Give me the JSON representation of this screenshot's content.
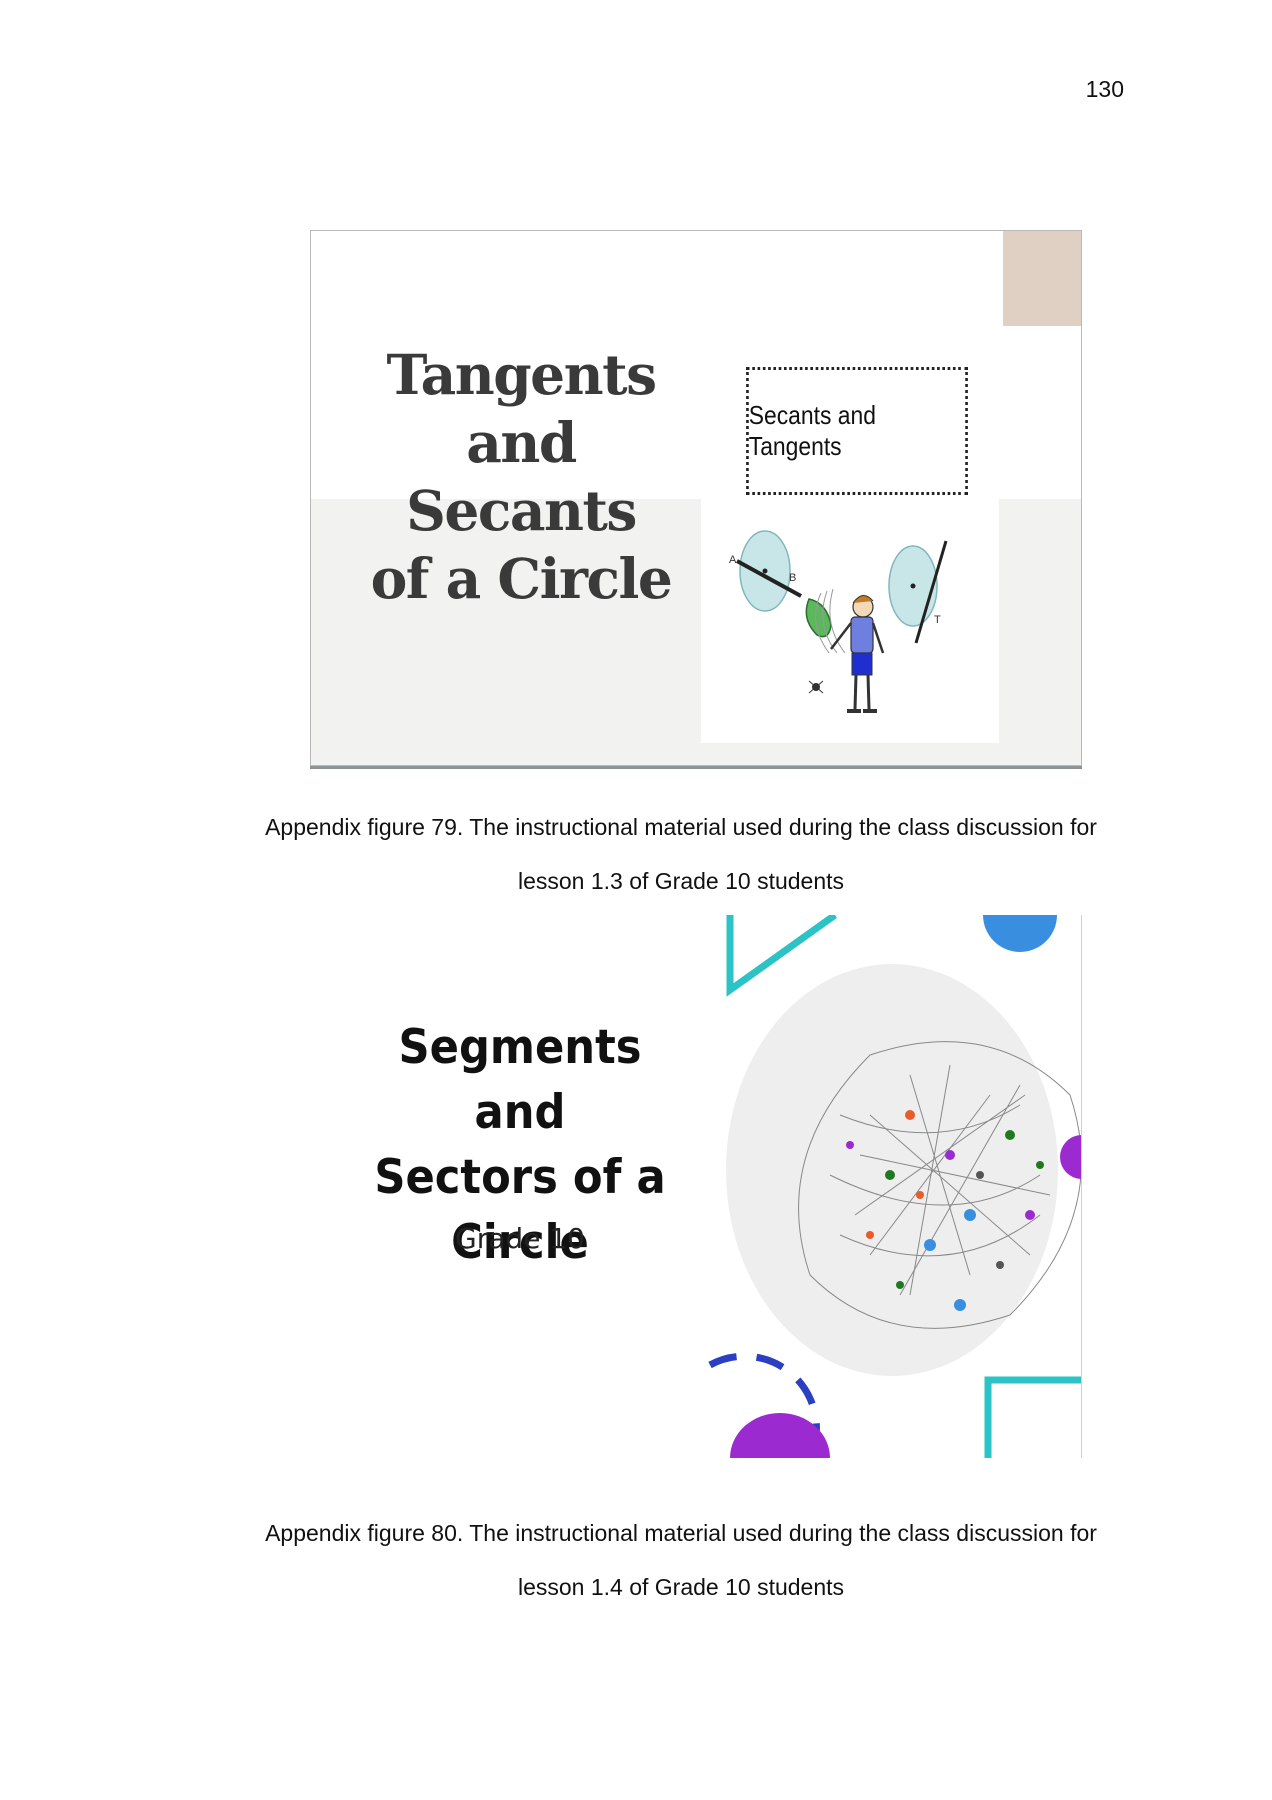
{
  "page_number": "130",
  "figure79": {
    "slide": {
      "title_lines": [
        "Tangents",
        "and Secants",
        "of a Circle"
      ],
      "box_label": "Secants and Tangents",
      "point_labels": {
        "a": "A",
        "b": "B",
        "t": "T"
      }
    },
    "caption_line1": "Appendix figure 79. The instructional material used during the class discussion for",
    "caption_line2": "lesson 1.3 of Grade 10 students"
  },
  "figure80": {
    "slide": {
      "title_lines": [
        "Segments and",
        "Sectors of a",
        "Circle"
      ],
      "subtitle": "Grade 10"
    },
    "caption_line1": "Appendix figure 80. The instructional material used during the class discussion for",
    "caption_line2": "lesson 1.4 of Grade 10 students"
  },
  "colors": {
    "slide1_accent": "#e0d0c3",
    "slide1_circle": "#c8e6e8",
    "slide2_teal": "#2bc3c6",
    "slide2_blue": "#3a8ee0",
    "slide2_purple": "#9b2bd0",
    "slide2_navy": "#2a3fc2"
  }
}
